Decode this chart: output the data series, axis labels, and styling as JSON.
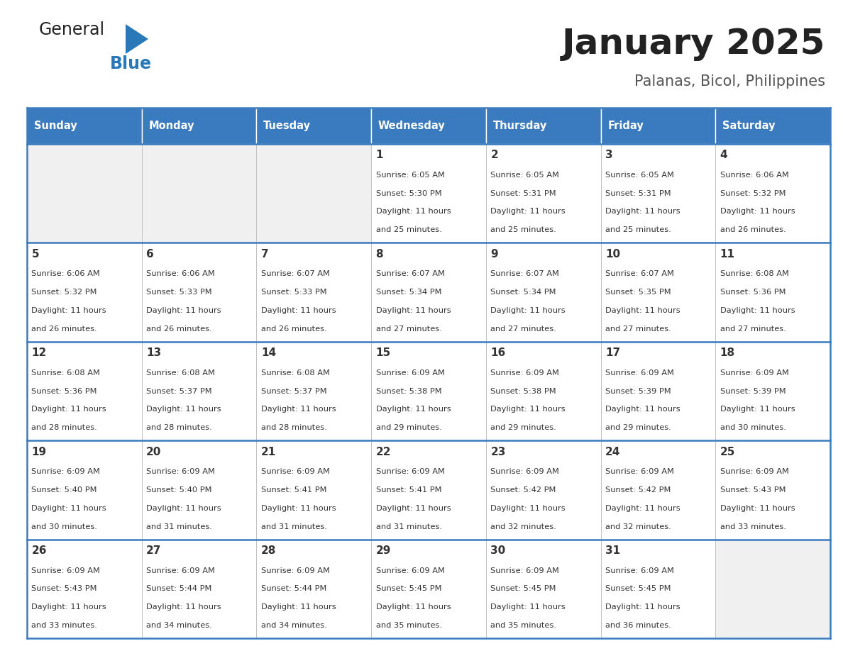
{
  "title": "January 2025",
  "subtitle": "Palanas, Bicol, Philippines",
  "days_of_week": [
    "Sunday",
    "Monday",
    "Tuesday",
    "Wednesday",
    "Thursday",
    "Friday",
    "Saturday"
  ],
  "header_bg": "#3a7abf",
  "header_text": "#ffffff",
  "cell_bg_filled": "#ffffff",
  "cell_bg_empty": "#f0f0f0",
  "separator_color": "#3a7abf",
  "row_sep_color": "#3a7abf",
  "day_num_color": "#333333",
  "cell_text_color": "#333333",
  "title_color": "#222222",
  "subtitle_color": "#555555",
  "logo_general_color": "#222222",
  "logo_blue_color": "#2979b8",
  "calendar": [
    [
      null,
      null,
      null,
      {
        "day": 1,
        "sunrise": "6:05 AM",
        "sunset": "5:30 PM",
        "daylight": "11 hours and 25 minutes."
      },
      {
        "day": 2,
        "sunrise": "6:05 AM",
        "sunset": "5:31 PM",
        "daylight": "11 hours and 25 minutes."
      },
      {
        "day": 3,
        "sunrise": "6:05 AM",
        "sunset": "5:31 PM",
        "daylight": "11 hours and 25 minutes."
      },
      {
        "day": 4,
        "sunrise": "6:06 AM",
        "sunset": "5:32 PM",
        "daylight": "11 hours and 26 minutes."
      }
    ],
    [
      {
        "day": 5,
        "sunrise": "6:06 AM",
        "sunset": "5:32 PM",
        "daylight": "11 hours and 26 minutes."
      },
      {
        "day": 6,
        "sunrise": "6:06 AM",
        "sunset": "5:33 PM",
        "daylight": "11 hours and 26 minutes."
      },
      {
        "day": 7,
        "sunrise": "6:07 AM",
        "sunset": "5:33 PM",
        "daylight": "11 hours and 26 minutes."
      },
      {
        "day": 8,
        "sunrise": "6:07 AM",
        "sunset": "5:34 PM",
        "daylight": "11 hours and 27 minutes."
      },
      {
        "day": 9,
        "sunrise": "6:07 AM",
        "sunset": "5:34 PM",
        "daylight": "11 hours and 27 minutes."
      },
      {
        "day": 10,
        "sunrise": "6:07 AM",
        "sunset": "5:35 PM",
        "daylight": "11 hours and 27 minutes."
      },
      {
        "day": 11,
        "sunrise": "6:08 AM",
        "sunset": "5:36 PM",
        "daylight": "11 hours and 27 minutes."
      }
    ],
    [
      {
        "day": 12,
        "sunrise": "6:08 AM",
        "sunset": "5:36 PM",
        "daylight": "11 hours and 28 minutes."
      },
      {
        "day": 13,
        "sunrise": "6:08 AM",
        "sunset": "5:37 PM",
        "daylight": "11 hours and 28 minutes."
      },
      {
        "day": 14,
        "sunrise": "6:08 AM",
        "sunset": "5:37 PM",
        "daylight": "11 hours and 28 minutes."
      },
      {
        "day": 15,
        "sunrise": "6:09 AM",
        "sunset": "5:38 PM",
        "daylight": "11 hours and 29 minutes."
      },
      {
        "day": 16,
        "sunrise": "6:09 AM",
        "sunset": "5:38 PM",
        "daylight": "11 hours and 29 minutes."
      },
      {
        "day": 17,
        "sunrise": "6:09 AM",
        "sunset": "5:39 PM",
        "daylight": "11 hours and 29 minutes."
      },
      {
        "day": 18,
        "sunrise": "6:09 AM",
        "sunset": "5:39 PM",
        "daylight": "11 hours and 30 minutes."
      }
    ],
    [
      {
        "day": 19,
        "sunrise": "6:09 AM",
        "sunset": "5:40 PM",
        "daylight": "11 hours and 30 minutes."
      },
      {
        "day": 20,
        "sunrise": "6:09 AM",
        "sunset": "5:40 PM",
        "daylight": "11 hours and 31 minutes."
      },
      {
        "day": 21,
        "sunrise": "6:09 AM",
        "sunset": "5:41 PM",
        "daylight": "11 hours and 31 minutes."
      },
      {
        "day": 22,
        "sunrise": "6:09 AM",
        "sunset": "5:41 PM",
        "daylight": "11 hours and 31 minutes."
      },
      {
        "day": 23,
        "sunrise": "6:09 AM",
        "sunset": "5:42 PM",
        "daylight": "11 hours and 32 minutes."
      },
      {
        "day": 24,
        "sunrise": "6:09 AM",
        "sunset": "5:42 PM",
        "daylight": "11 hours and 32 minutes."
      },
      {
        "day": 25,
        "sunrise": "6:09 AM",
        "sunset": "5:43 PM",
        "daylight": "11 hours and 33 minutes."
      }
    ],
    [
      {
        "day": 26,
        "sunrise": "6:09 AM",
        "sunset": "5:43 PM",
        "daylight": "11 hours and 33 minutes."
      },
      {
        "day": 27,
        "sunrise": "6:09 AM",
        "sunset": "5:44 PM",
        "daylight": "11 hours and 34 minutes."
      },
      {
        "day": 28,
        "sunrise": "6:09 AM",
        "sunset": "5:44 PM",
        "daylight": "11 hours and 34 minutes."
      },
      {
        "day": 29,
        "sunrise": "6:09 AM",
        "sunset": "5:45 PM",
        "daylight": "11 hours and 35 minutes."
      },
      {
        "day": 30,
        "sunrise": "6:09 AM",
        "sunset": "5:45 PM",
        "daylight": "11 hours and 35 minutes."
      },
      {
        "day": 31,
        "sunrise": "6:09 AM",
        "sunset": "5:45 PM",
        "daylight": "11 hours and 36 minutes."
      },
      null
    ]
  ],
  "fig_width": 11.88,
  "fig_height": 9.18,
  "dpi": 100
}
